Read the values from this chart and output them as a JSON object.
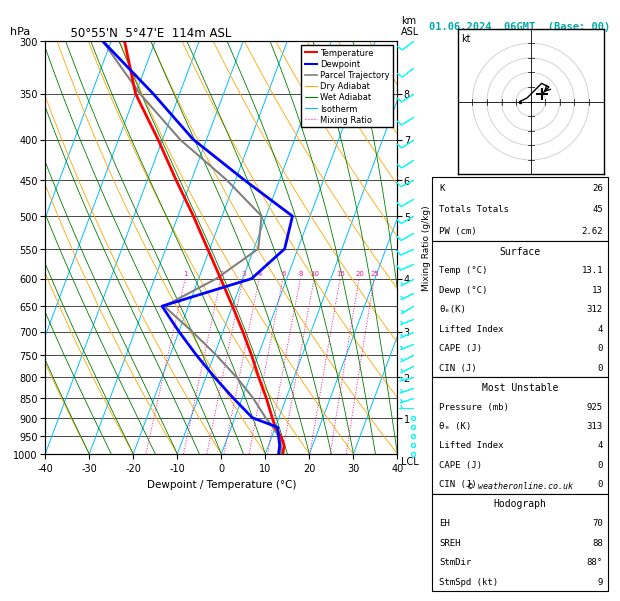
{
  "title_left": "50°55'N  5°47'E  114m ASL",
  "title_date": "01.06.2024  06GMT  (Base: 00)",
  "xlabel": "Dewpoint / Temperature (°C)",
  "ylabel_left": "hPa",
  "temp_color": "#ff0000",
  "dewp_color": "#0000ff",
  "parcel_color": "#808080",
  "dry_adiabat_color": "#ffa500",
  "wet_adiabat_color": "#008000",
  "isotherm_color": "#00bfff",
  "mixing_ratio_color": "#ff1493",
  "background_color": "#ffffff",
  "pressure_levels": [
    300,
    350,
    400,
    450,
    500,
    550,
    600,
    650,
    700,
    750,
    800,
    850,
    900,
    950,
    1000
  ],
  "temp_data": {
    "pressure": [
      1000,
      975,
      950,
      925,
      900,
      850,
      800,
      750,
      700,
      650,
      600,
      550,
      500,
      450,
      400,
      350,
      300
    ],
    "temp": [
      14.0,
      13.5,
      12.0,
      10.0,
      8.5,
      5.5,
      2.0,
      -1.5,
      -5.5,
      -10.0,
      -15.0,
      -20.5,
      -26.5,
      -33.5,
      -41.0,
      -50.0,
      -57.0
    ]
  },
  "dewp_data": {
    "pressure": [
      1000,
      975,
      950,
      925,
      900,
      850,
      800,
      750,
      700,
      650,
      600,
      550,
      500,
      450,
      400,
      350,
      300
    ],
    "dewp": [
      13.0,
      12.5,
      11.5,
      10.5,
      4.0,
      -2.0,
      -8.0,
      -14.0,
      -20.0,
      -26.0,
      -8.0,
      -3.0,
      -4.0,
      -18.0,
      -33.0,
      -46.0,
      -62.0
    ]
  },
  "parcel_data": {
    "pressure": [
      1000,
      975,
      950,
      925,
      900,
      850,
      800,
      750,
      700,
      650,
      600,
      550,
      500,
      450,
      400,
      350,
      300
    ],
    "temp": [
      13.5,
      12.8,
      11.5,
      9.5,
      7.0,
      2.5,
      -3.0,
      -9.5,
      -17.0,
      -25.5,
      -16.0,
      -9.0,
      -11.0,
      -22.0,
      -36.0,
      -49.0,
      -62.0
    ]
  },
  "km_ticks": [
    1,
    2,
    3,
    4,
    5,
    6,
    7,
    8
  ],
  "km_pressures": [
    900,
    800,
    700,
    600,
    500,
    450,
    400,
    350
  ],
  "mixing_ratio_values": [
    1,
    2,
    3,
    4,
    6,
    8,
    10,
    15,
    20,
    25
  ],
  "stats": {
    "K": 26,
    "Totals_Totals": 45,
    "PW_cm": 2.62,
    "surface_temp": 13.1,
    "surface_dewp": 13,
    "surface_theta_e": 312,
    "surface_lifted_index": 4,
    "surface_CAPE": 0,
    "surface_CIN": 0,
    "mu_pressure": 925,
    "mu_theta_e": 313,
    "mu_lifted_index": 4,
    "mu_CAPE": 0,
    "mu_CIN": 0,
    "EH": 70,
    "SREH": 88,
    "StmDir": "88°",
    "StmSpd": 9
  },
  "wind_barb_levels": [
    300,
    325,
    350,
    375,
    400,
    425,
    450,
    475,
    500,
    525,
    550,
    575,
    600,
    625,
    650,
    675,
    700,
    725,
    750,
    775,
    800,
    825,
    850,
    875,
    900,
    925,
    950,
    975,
    1000
  ],
  "wind_barb_u": [
    8,
    8,
    8,
    8,
    8,
    8,
    8,
    7,
    7,
    7,
    7,
    7,
    6,
    6,
    5,
    5,
    5,
    5,
    4,
    4,
    4,
    3,
    3,
    3,
    2,
    2,
    1,
    1,
    1
  ],
  "wind_barb_v": [
    6,
    6,
    5,
    5,
    5,
    5,
    4,
    4,
    4,
    4,
    3,
    3,
    3,
    3,
    3,
    2,
    2,
    2,
    2,
    2,
    1,
    1,
    1,
    0,
    0,
    0,
    0,
    0,
    0
  ],
  "hodograph_u": [
    -1.5,
    -0.5,
    0.5,
    1.5,
    2.5,
    1.5
  ],
  "hodograph_v": [
    0.0,
    0.5,
    1.5,
    2.5,
    2.0,
    1.0
  ]
}
